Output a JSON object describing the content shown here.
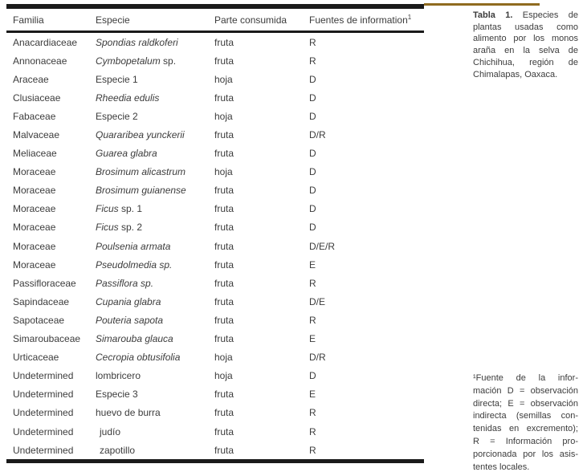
{
  "colors": {
    "accent_rule": "#8f6b20",
    "table_rule": "#1a1a1a",
    "text": "#3c3c3c"
  },
  "table": {
    "columns": [
      "Familia",
      "Especie",
      "Parte consumida",
      "Fuentes de information"
    ],
    "fuentes_superscript": "1",
    "rows": [
      {
        "familia": "Anacardiaceae",
        "especie_italic": "Spondias raldkoferi",
        "especie_roman": "",
        "parte": "fruta",
        "fuente": "R",
        "indent": false
      },
      {
        "familia": "Annonaceae",
        "especie_italic": "Cymbopetalum",
        "especie_roman": " sp.",
        "parte": "fruta",
        "fuente": "R",
        "indent": false
      },
      {
        "familia": "Araceae",
        "especie_italic": "",
        "especie_roman": "Especie 1",
        "parte": "hoja",
        "fuente": "D",
        "indent": false
      },
      {
        "familia": "Clusiaceae",
        "especie_italic": "Rheedia edulis",
        "especie_roman": "",
        "parte": "fruta",
        "fuente": "D",
        "indent": false
      },
      {
        "familia": "Fabaceae",
        "especie_italic": "",
        "especie_roman": "Especie 2",
        "parte": "hoja",
        "fuente": "D",
        "indent": false
      },
      {
        "familia": "Malvaceae",
        "especie_italic": "Quararibea yunckerii",
        "especie_roman": "",
        "parte": "fruta",
        "fuente": "D/R",
        "indent": false
      },
      {
        "familia": "Meliaceae",
        "especie_italic": "Guarea glabra",
        "especie_roman": "",
        "parte": "fruta",
        "fuente": "D",
        "indent": false
      },
      {
        "familia": "Moraceae",
        "especie_italic": "Brosimum alicastrum",
        "especie_roman": "",
        "parte": "hoja",
        "fuente": "D",
        "indent": false
      },
      {
        "familia": "Moraceae",
        "especie_italic": "Brosimum guianense",
        "especie_roman": "",
        "parte": "fruta",
        "fuente": "D",
        "indent": false
      },
      {
        "familia": "Moraceae",
        "especie_italic": "Ficus",
        "especie_roman": " sp. 1",
        "parte": "fruta",
        "fuente": "D",
        "indent": false
      },
      {
        "familia": "Moraceae",
        "especie_italic": "Ficus",
        "especie_roman": " sp. 2",
        "parte": "fruta",
        "fuente": "D",
        "indent": false
      },
      {
        "familia": "Moraceae",
        "especie_italic": "Poulsenia armata",
        "especie_roman": "",
        "parte": "fruta",
        "fuente": "D/E/R",
        "indent": false
      },
      {
        "familia": "Moraceae",
        "especie_italic": "Pseudolmedia sp.",
        "especie_roman": "",
        "parte": "fruta",
        "fuente": "E",
        "indent": false
      },
      {
        "familia": "Passifloraceae",
        "especie_italic": "Passiflora sp.",
        "especie_roman": "",
        "parte": "fruta",
        "fuente": "R",
        "indent": false
      },
      {
        "familia": "Sapindaceae",
        "especie_italic": "Cupania glabra",
        "especie_roman": "",
        "parte": "fruta",
        "fuente": "D/E",
        "indent": false
      },
      {
        "familia": "Sapotaceae",
        "especie_italic": "Pouteria sapota",
        "especie_roman": "",
        "parte": "fruta",
        "fuente": "R",
        "indent": false
      },
      {
        "familia": "Simaroubaceae",
        "especie_italic": "Simarouba glauca",
        "especie_roman": "",
        "parte": "fruta",
        "fuente": "E",
        "indent": false
      },
      {
        "familia": "Urticaceae",
        "especie_italic": "Cecropia obtusifolia",
        "especie_roman": "",
        "parte": "hoja",
        "fuente": "D/R",
        "indent": false
      },
      {
        "familia": "Undetermined",
        "especie_italic": "",
        "especie_roman": "lombricero",
        "parte": "hoja",
        "fuente": "D",
        "indent": false
      },
      {
        "familia": "Undetermined",
        "especie_italic": "",
        "especie_roman": "Especie 3",
        "parte": "fruta",
        "fuente": "E",
        "indent": false
      },
      {
        "familia": "Undetermined",
        "especie_italic": "",
        "especie_roman": "huevo de burra",
        "parte": "fruta",
        "fuente": "R",
        "indent": false
      },
      {
        "familia": "Undetermined",
        "especie_italic": "",
        "especie_roman": "judío",
        "parte": "fruta",
        "fuente": "R",
        "indent": true
      },
      {
        "familia": "Undetermined",
        "especie_italic": "",
        "especie_roman": "zapotillo",
        "parte": "fruta",
        "fuente": "R",
        "indent": true
      }
    ]
  },
  "caption": {
    "bold_prefix": "Tabla 1.",
    "lines": [
      "Especies de",
      "plantas usadas como",
      "alimento por los monos",
      "araña en la selva de",
      "Chichihua, región de",
      "Chimalapas, Oaxaca."
    ]
  },
  "footnote": {
    "lines": [
      "¹Fuente de la infor-",
      "mación D = observación",
      "directa; E = observación",
      "indirecta (semillas con-",
      "tenidas en excremento);",
      "R = Información pro-",
      "porcionada por los asis-",
      "tentes locales."
    ]
  }
}
